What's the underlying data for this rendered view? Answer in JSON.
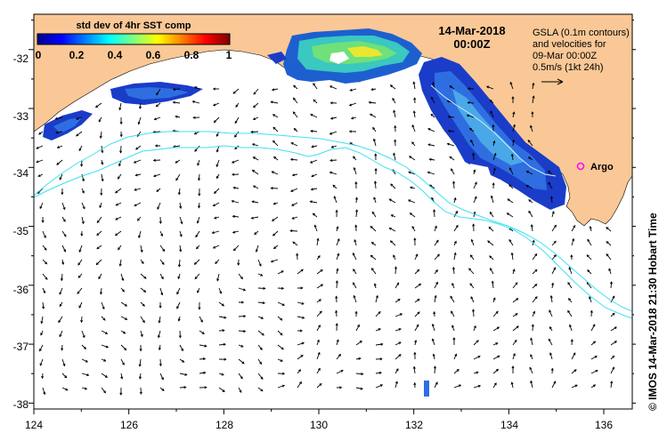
{
  "title": {
    "date": "14-Mar-2018",
    "time": "00:00Z"
  },
  "colorbar": {
    "title": "std dev of 4hr SST comp",
    "ticks": [
      "0",
      "0.2",
      "0.4",
      "0.6",
      "0.8",
      "1"
    ],
    "range": [
      0,
      1
    ],
    "colors": [
      "#00008f",
      "#0000ff",
      "#0080ff",
      "#00ffff",
      "#80ff80",
      "#ffff00",
      "#ff8000",
      "#ff0000",
      "#800000"
    ]
  },
  "info": {
    "line1": "GSLA (0.1m contours)",
    "line2": "and velocities for",
    "line3": "09-Mar 00:00Z",
    "line4": "0.5m/s (1kt 24h)"
  },
  "argo": {
    "label": "Argo",
    "lon": 135.5,
    "lat": -33.9,
    "color": "#ff00ff"
  },
  "credit": "©  IMOS 14-Mar-2018 21:30 Hobart Time",
  "axes": {
    "lon_ticks": [
      "124",
      "126",
      "128",
      "130",
      "132",
      "134",
      "136"
    ],
    "lat_ticks": [
      "-32",
      "-33",
      "-34",
      "-35",
      "-36",
      "-37",
      "-38"
    ],
    "lon_range": [
      124,
      136.6
    ],
    "lat_range": [
      -38.1,
      -31.4
    ]
  },
  "colors": {
    "land": "#fac896",
    "contour": "#40e0f0",
    "arrow": "#000000"
  }
}
